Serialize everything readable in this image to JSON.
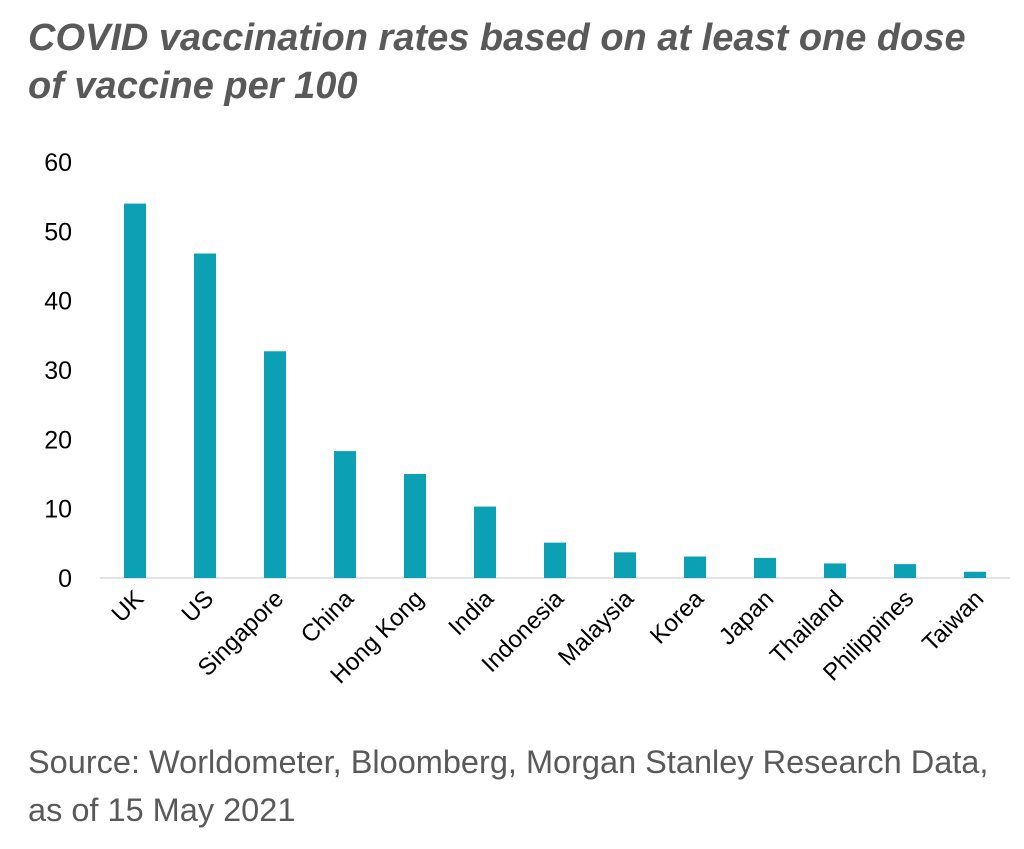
{
  "chart_data": {
    "type": "bar",
    "title": "COVID vaccination rates based on at least one dose of vaccine per 100",
    "xlabel": "",
    "ylabel": "",
    "categories": [
      "UK",
      "US",
      "Singapore",
      "China",
      "Hong Kong",
      "India",
      "Indonesia",
      "Malaysia",
      "Korea",
      "Japan",
      "Thailand",
      "Philippines",
      "Taiwan"
    ],
    "values": [
      54,
      46.8,
      32.7,
      18.3,
      15,
      10.3,
      5.1,
      3.7,
      3.1,
      2.9,
      2.1,
      2,
      0.9
    ],
    "ylim": [
      0,
      60
    ],
    "yticks": [
      "0",
      "10",
      "20",
      "30",
      "40",
      "50",
      "60"
    ],
    "grid": false,
    "legend": "none",
    "bar_color": "#0ba0b4",
    "axis_color": "#d9d9d9"
  },
  "source": "Source: Worldometer, Bloomberg, Morgan Stanley Research Data, as of 15 May 2021"
}
